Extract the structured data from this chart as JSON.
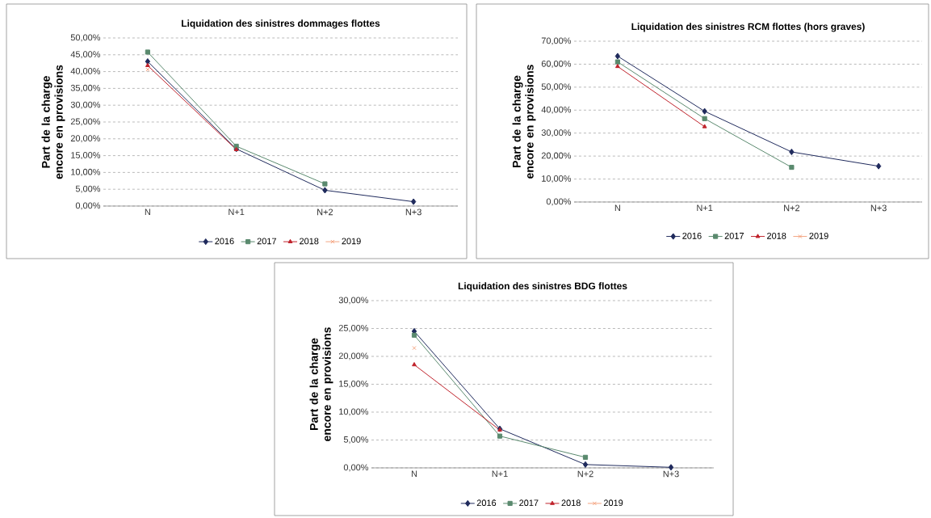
{
  "chart_data": [
    {
      "type": "line",
      "title": "Liquidation des sinistres dommages flottes",
      "ylabel": "Part de la charge encore en provisions",
      "categories": [
        "N",
        "N+1",
        "N+2",
        "N+3"
      ],
      "ylim": [
        0,
        50
      ],
      "yticks": [
        {
          "value": 0,
          "label": "0,00%"
        },
        {
          "value": 5,
          "label": "5,00%"
        },
        {
          "value": 10,
          "label": "10,00%"
        },
        {
          "value": 15,
          "label": "15,00%"
        },
        {
          "value": 20,
          "label": "20,00%"
        },
        {
          "value": 25,
          "label": "25,00%"
        },
        {
          "value": 30,
          "label": "30,00%"
        },
        {
          "value": 35,
          "label": "35,00%"
        },
        {
          "value": 40,
          "label": "40,00%"
        },
        {
          "value": 45,
          "label": "45,00%"
        },
        {
          "value": 50,
          "label": "50,00%"
        }
      ],
      "grid": "y",
      "legend": "bottom",
      "line_style": "solid",
      "series": [
        {
          "name": "2016",
          "color": "#1f2a5c",
          "marker": "diamond",
          "values": [
            43,
            17,
            4.7,
            1.3
          ]
        },
        {
          "name": "2017",
          "color": "#5a8a6e",
          "marker": "square",
          "values": [
            45.8,
            17.8,
            6.6,
            null
          ]
        },
        {
          "name": "2018",
          "color": "#c0232c",
          "marker": "triangle",
          "values": [
            41.8,
            16.8,
            null,
            null
          ]
        },
        {
          "name": "2019",
          "color": "#f4a582",
          "marker": "cross",
          "values": [
            40.6,
            null,
            null,
            null
          ]
        }
      ]
    },
    {
      "type": "line",
      "title": "Liquidation des sinistres RCM flottes (hors graves)",
      "ylabel": "Part de la charge encore en provisions",
      "categories": [
        "N",
        "N+1",
        "N+2",
        "N+3"
      ],
      "ylim": [
        0,
        70
      ],
      "yticks": [
        {
          "value": 0,
          "label": "0,00%"
        },
        {
          "value": 10,
          "label": "10,00%"
        },
        {
          "value": 20,
          "label": "20,00%"
        },
        {
          "value": 30,
          "label": "30,00%"
        },
        {
          "value": 40,
          "label": "40,00%"
        },
        {
          "value": 50,
          "label": "50,00%"
        },
        {
          "value": 60,
          "label": "60,00%"
        },
        {
          "value": 70,
          "label": "70,00%"
        }
      ],
      "grid": "y",
      "legend": "bottom",
      "line_style": "solid",
      "series": [
        {
          "name": "2016",
          "color": "#1f2a5c",
          "marker": "diamond",
          "values": [
            63.5,
            39.5,
            21.8,
            15.6
          ]
        },
        {
          "name": "2017",
          "color": "#5a8a6e",
          "marker": "square",
          "values": [
            61,
            36.3,
            15.1,
            null
          ]
        },
        {
          "name": "2018",
          "color": "#c0232c",
          "marker": "triangle",
          "values": [
            59,
            32.8,
            null,
            null
          ]
        },
        {
          "name": "2019",
          "color": "#f4a582",
          "marker": "cross",
          "values": [
            null,
            null,
            null,
            null
          ]
        }
      ]
    },
    {
      "type": "line",
      "title": "Liquidation des sinistres BDG flottes",
      "ylabel": "Part de la charge encore en provisions",
      "categories": [
        "N",
        "N+1",
        "N+2",
        "N+3"
      ],
      "ylim": [
        0,
        30
      ],
      "yticks": [
        {
          "value": 0,
          "label": "0,00%"
        },
        {
          "value": 5,
          "label": "5,00%"
        },
        {
          "value": 10,
          "label": "10,00%"
        },
        {
          "value": 15,
          "label": "15,00%"
        },
        {
          "value": 20,
          "label": "20,00%"
        },
        {
          "value": 25,
          "label": "25,00%"
        },
        {
          "value": 30,
          "label": "30,00%"
        }
      ],
      "grid": "y",
      "legend": "bottom",
      "line_style": "solid",
      "series": [
        {
          "name": "2016",
          "color": "#1f2a5c",
          "marker": "diamond",
          "values": [
            24.5,
            7,
            0.6,
            0.1
          ]
        },
        {
          "name": "2017",
          "color": "#5a8a6e",
          "marker": "square",
          "values": [
            23.8,
            5.7,
            1.9,
            null
          ]
        },
        {
          "name": "2018",
          "color": "#c0232c",
          "marker": "triangle",
          "values": [
            18.5,
            6.8,
            null,
            null
          ]
        },
        {
          "name": "2019",
          "color": "#f4a582",
          "marker": "cross",
          "values": [
            21.5,
            null,
            null,
            null
          ]
        }
      ]
    }
  ]
}
